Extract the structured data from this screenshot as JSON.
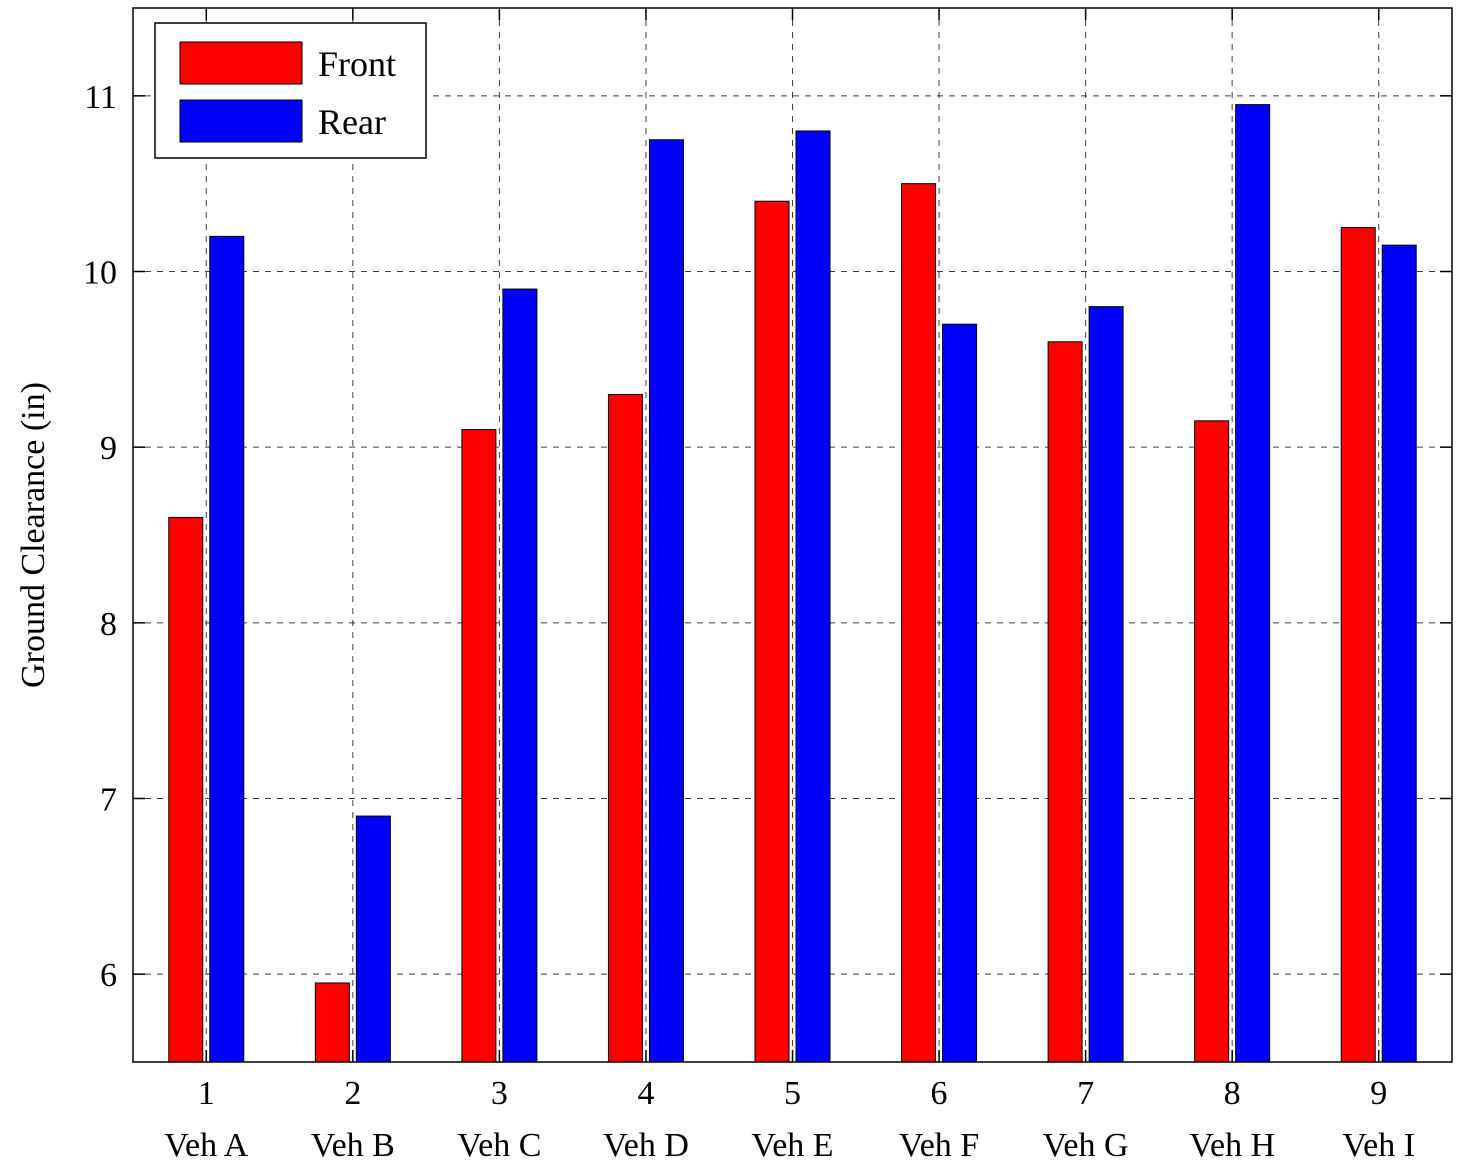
{
  "chart_data": {
    "type": "bar",
    "title": "",
    "xlabel": "",
    "ylabel": "Ground Clearance (in)",
    "categories": [
      "1",
      "2",
      "3",
      "4",
      "5",
      "6",
      "7",
      "8",
      "9"
    ],
    "category_names": [
      "Veh A",
      "Veh B",
      "Veh C",
      "Veh D",
      "Veh E",
      "Veh F",
      "Veh G",
      "Veh H",
      "Veh I"
    ],
    "series": [
      {
        "name": "Front",
        "color": "#ff0000",
        "values": [
          8.6,
          5.95,
          9.1,
          9.3,
          10.4,
          10.5,
          9.6,
          9.15,
          10.25
        ]
      },
      {
        "name": "Rear",
        "color": "#0000ff",
        "values": [
          10.2,
          6.9,
          9.9,
          10.75,
          10.8,
          9.7,
          9.8,
          10.95,
          10.15
        ]
      }
    ],
    "ylim": [
      5.5,
      11.5
    ],
    "yticks": [
      6,
      7,
      8,
      9,
      10,
      11
    ],
    "grid": true,
    "legend": "top-left"
  }
}
